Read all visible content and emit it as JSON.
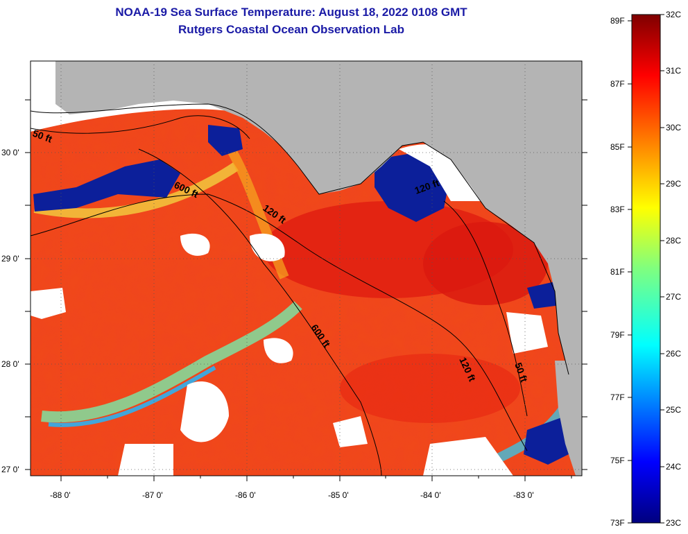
{
  "header": {
    "title": "NOAA-19 Sea Surface Temperature:  August 18, 2022 0108 GMT",
    "subtitle": "Rutgers Coastal Ocean Observation Lab"
  },
  "map": {
    "lon_ticks": [
      "-88 0'",
      "-87 0'",
      "-86 0'",
      "-85 0'",
      "-84 0'",
      "-83 0'"
    ],
    "lat_ticks": [
      "30 0'",
      "29 0'",
      "28 0'",
      "27 0'"
    ],
    "contour_labels": [
      "50 ft",
      "600 ft",
      "120 ft",
      "120 ft",
      "600 ft",
      "120 ft",
      "50 ft"
    ],
    "colors": {
      "land": "#b4b4b4",
      "cloud": "#ffffff",
      "warm": "#f0441a",
      "hot": "#e32011",
      "cool": "#0b1f9c"
    }
  },
  "colorbar": {
    "f_labels": [
      "89F",
      "87F",
      "85F",
      "83F",
      "81F",
      "79F",
      "77F",
      "75F",
      "73F"
    ],
    "c_labels": [
      "32C",
      "31C",
      "30C",
      "29C",
      "28C",
      "27C",
      "26C",
      "25C",
      "24C",
      "23C"
    ]
  }
}
